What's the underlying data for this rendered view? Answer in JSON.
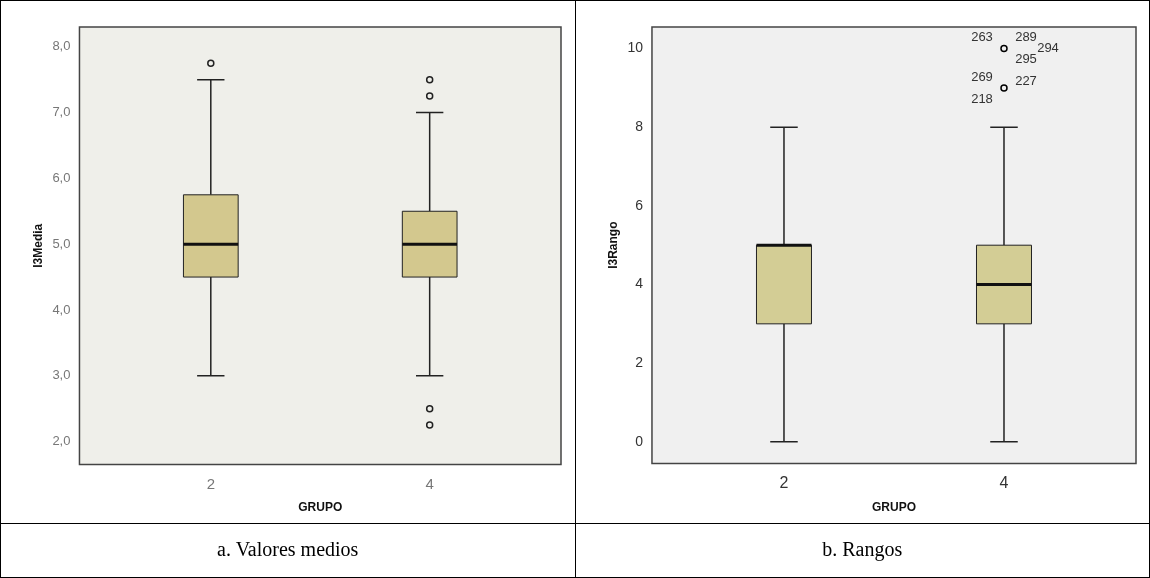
{
  "chart_data": [
    {
      "type": "box",
      "categories": [
        "2",
        "4"
      ],
      "xlabel": "GRUPO",
      "ylabel": "I3Media",
      "color": "#d3c88e",
      "boxes": [
        {
          "low": 3,
          "q1": 4.5,
          "median": 5,
          "q3": 5.75,
          "high": 7.5,
          "outliers": [
            7.75
          ]
        },
        {
          "low": 3,
          "q1": 4.5,
          "median": 5,
          "q3": 5.5,
          "high": 7,
          "outliers": [
            7.5,
            7.25,
            2.5,
            2.25
          ]
        }
      ],
      "ylim": [
        1.65,
        8.3
      ],
      "yticks": [
        {
          "value": 2,
          "label": "2,0"
        },
        {
          "value": 3,
          "label": "3,0"
        },
        {
          "value": 4,
          "label": "4,0"
        },
        {
          "value": 5,
          "label": "5,0"
        },
        {
          "value": 6,
          "label": "6,0"
        },
        {
          "value": 7,
          "label": "7,0"
        },
        {
          "value": 8,
          "label": "8,0"
        }
      ],
      "grid": false,
      "annotations": [
        "a. Valores medios"
      ]
    },
    {
      "type": "box",
      "categories": [
        "2",
        "4"
      ],
      "xlabel": "GRUPO",
      "ylabel": "I3Rango",
      "color": "#d3cd95",
      "boxes": [
        {
          "low": 0,
          "q1": 3,
          "median": 5,
          "q3": 5,
          "high": 8
        },
        {
          "low": 0,
          "q1": 3,
          "median": 4,
          "q3": 5,
          "high": 8
        }
      ],
      "series": [
        {
          "type": "scatter",
          "color": "#000000",
          "x": [
            "4",
            "4"
          ],
          "values": [
            10,
            9
          ]
        }
      ],
      "ylim": [
        -0.55,
        10.55
      ],
      "yticks": [
        0,
        2,
        4,
        6,
        8,
        10
      ],
      "grid": false,
      "annotations": [
        {
          "text": "263",
          "x": "4",
          "y": 10
        },
        {
          "text": "289",
          "x": "4",
          "y": 10
        },
        {
          "text": "294",
          "x": "4",
          "y": 10
        },
        {
          "text": "295",
          "x": "4",
          "y": 10
        },
        {
          "text": "269",
          "x": "4",
          "y": 9
        },
        {
          "text": "227",
          "x": "4",
          "y": 9
        },
        {
          "text": "218",
          "x": "4",
          "y": 9
        },
        "b. Rangos"
      ]
    }
  ]
}
